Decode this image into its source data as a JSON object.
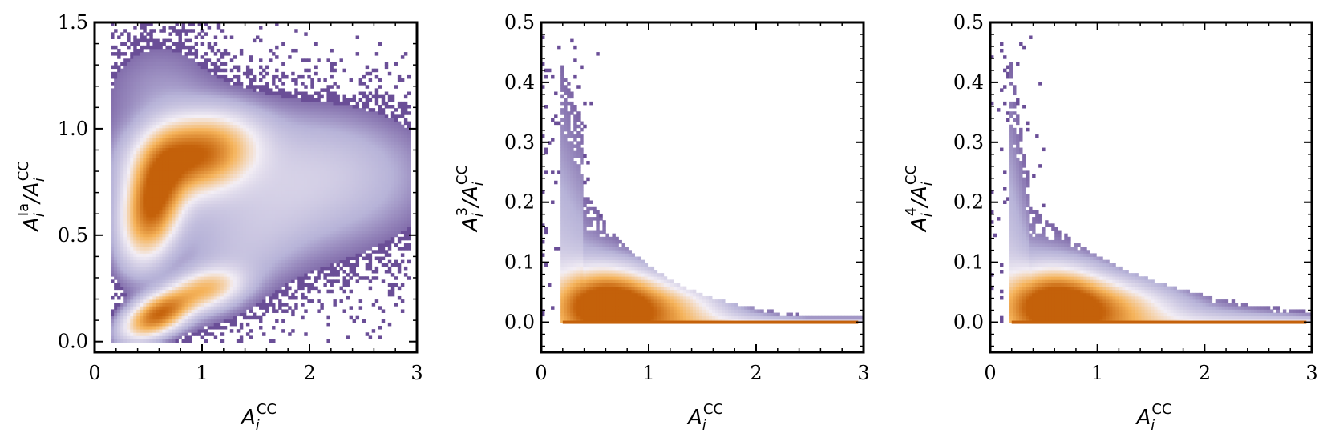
{
  "chart_data": [
    {
      "type": "heatmap",
      "xlabel": "A_i^CC",
      "ylabel": "A_i^Ia / A_i^CC",
      "xlim": [
        0,
        3
      ],
      "ylim": [
        -0.05,
        1.5
      ],
      "xticks": [
        "0",
        "1",
        "2",
        "3"
      ],
      "yticks": [
        "0.0",
        "0.5",
        "1.0",
        "1.5"
      ],
      "grid": false,
      "density_peaks": [
        {
          "x": 0.5,
          "y": 0.62,
          "level": "high"
        },
        {
          "x": 0.95,
          "y": 0.9,
          "level": "high"
        },
        {
          "x": 0.55,
          "y": 0.12,
          "level": "high"
        },
        {
          "x": 1.0,
          "y": 0.25,
          "level": "medium"
        }
      ]
    },
    {
      "type": "heatmap",
      "xlabel": "A_i^CC",
      "ylabel": "A_i^3 / A_i^CC",
      "xlim": [
        0,
        3
      ],
      "ylim": [
        -0.05,
        0.5
      ],
      "xticks": [
        "0",
        "1",
        "2",
        "3"
      ],
      "yticks": [
        "0.0",
        "0.1",
        "0.2",
        "0.3",
        "0.4",
        "0.5"
      ],
      "grid": false,
      "density_peaks": [
        {
          "x": 0.6,
          "y": 0.03,
          "level": "high"
        },
        {
          "x": 1.0,
          "y": 0.02,
          "level": "medium"
        }
      ]
    },
    {
      "type": "heatmap",
      "xlabel": "A_i^CC",
      "ylabel": "A_i^4 / A_i^CC",
      "xlim": [
        0,
        3
      ],
      "ylim": [
        -0.05,
        0.5
      ],
      "xticks": [
        "0",
        "1",
        "2",
        "3"
      ],
      "yticks": [
        "0.0",
        "0.1",
        "0.2",
        "0.3",
        "0.4",
        "0.5"
      ],
      "grid": false,
      "density_peaks": [
        {
          "x": 0.6,
          "y": 0.05,
          "level": "high"
        },
        {
          "x": 1.0,
          "y": 0.04,
          "level": "medium"
        }
      ]
    }
  ],
  "colors": {
    "low_density": "#3b0f6f",
    "mid_low": "#b7b3d8",
    "mid": "#f3eef5",
    "mid_high": "#f5b35a",
    "high_density": "#c4610a"
  }
}
